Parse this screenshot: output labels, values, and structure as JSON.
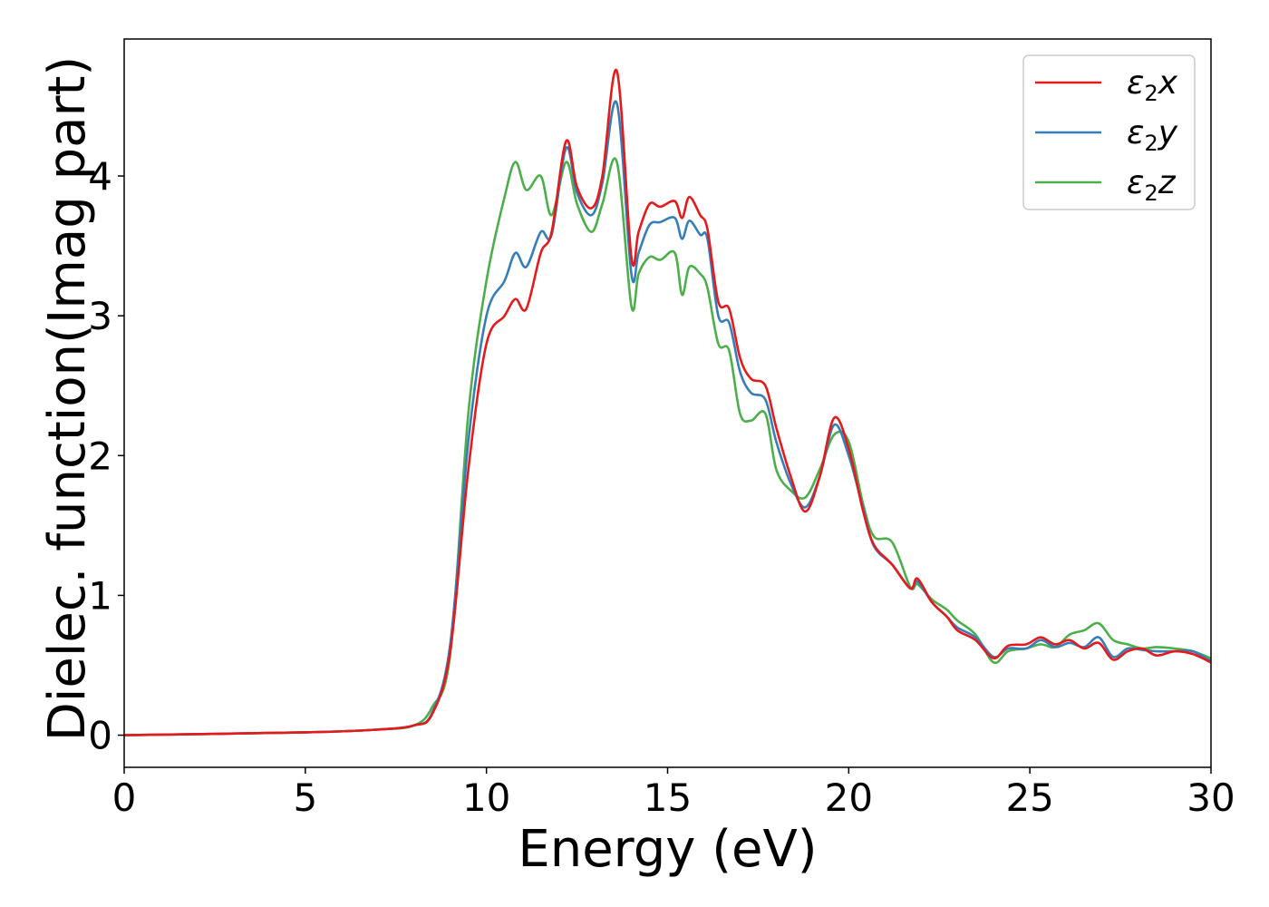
{
  "chart_data": {
    "type": "line",
    "title": "",
    "xlabel": "Energy (eV)",
    "ylabel": "Dielec. function(Imag part)",
    "xlim": [
      0,
      30
    ],
    "ylim": [
      -0.23,
      4.98
    ],
    "xticks": [
      0,
      5,
      10,
      15,
      20,
      25,
      30
    ],
    "yticks": [
      0,
      1,
      2,
      3,
      4
    ],
    "grid": false,
    "legend_position": "top-right",
    "series": [
      {
        "name": "ε2x",
        "legend_main": "ε",
        "legend_sub": "2",
        "legend_var": "x",
        "color": "#e41a1c",
        "x": [
          0,
          5,
          7,
          8,
          8.5,
          9,
          9.5,
          10,
          10.5,
          10.8,
          11.1,
          11.5,
          11.8,
          12.2,
          12.5,
          12.9,
          13.2,
          13.6,
          14.0,
          14.2,
          14.5,
          14.8,
          15.2,
          15.4,
          15.6,
          15.9,
          16.1,
          16.4,
          16.7,
          17.0,
          17.3,
          17.7,
          18.0,
          18.4,
          18.8,
          19.2,
          19.6,
          20.0,
          20.4,
          20.7,
          21.2,
          21.7,
          21.9,
          22.3,
          22.7,
          23.0,
          23.5,
          24.0,
          24.4,
          24.9,
          25.3,
          25.7,
          26.1,
          26.5,
          26.9,
          27.3,
          27.7,
          28.1,
          28.5,
          29.0,
          29.5,
          30
        ],
        "y": [
          0.0,
          0.02,
          0.04,
          0.07,
          0.15,
          0.6,
          1.9,
          2.8,
          3.0,
          3.12,
          3.05,
          3.45,
          3.6,
          4.25,
          3.92,
          3.77,
          4.0,
          4.75,
          3.42,
          3.6,
          3.8,
          3.78,
          3.82,
          3.7,
          3.85,
          3.72,
          3.62,
          3.1,
          3.05,
          2.7,
          2.55,
          2.5,
          2.2,
          1.85,
          1.6,
          1.85,
          2.27,
          2.05,
          1.6,
          1.36,
          1.22,
          1.05,
          1.12,
          0.95,
          0.85,
          0.75,
          0.68,
          0.55,
          0.64,
          0.65,
          0.7,
          0.65,
          0.68,
          0.62,
          0.66,
          0.54,
          0.6,
          0.62,
          0.57,
          0.6,
          0.58,
          0.52
        ]
      },
      {
        "name": "ε2y",
        "legend_main": "ε",
        "legend_sub": "2",
        "legend_var": "y",
        "color": "#377eb8",
        "x": [
          0,
          5,
          7,
          8,
          8.5,
          9,
          9.5,
          10,
          10.5,
          10.8,
          11.1,
          11.5,
          11.8,
          12.2,
          12.5,
          12.9,
          13.2,
          13.6,
          14.0,
          14.2,
          14.5,
          14.8,
          15.2,
          15.4,
          15.6,
          15.9,
          16.1,
          16.4,
          16.7,
          17.0,
          17.3,
          17.7,
          18.0,
          18.4,
          18.8,
          19.2,
          19.6,
          20.0,
          20.4,
          20.7,
          21.2,
          21.7,
          21.9,
          22.3,
          22.7,
          23.0,
          23.5,
          24.0,
          24.4,
          24.9,
          25.3,
          25.7,
          26.1,
          26.5,
          26.9,
          27.3,
          27.7,
          28.1,
          28.5,
          29.0,
          29.5,
          30
        ],
        "y": [
          0.0,
          0.02,
          0.04,
          0.07,
          0.16,
          0.65,
          2.1,
          3.0,
          3.25,
          3.45,
          3.35,
          3.6,
          3.58,
          4.2,
          3.88,
          3.72,
          3.95,
          4.52,
          3.3,
          3.45,
          3.65,
          3.67,
          3.7,
          3.55,
          3.68,
          3.58,
          3.55,
          3.0,
          2.95,
          2.6,
          2.45,
          2.4,
          2.1,
          1.8,
          1.63,
          1.85,
          2.22,
          2.0,
          1.62,
          1.35,
          1.22,
          1.05,
          1.1,
          0.95,
          0.85,
          0.77,
          0.7,
          0.56,
          0.62,
          0.62,
          0.68,
          0.63,
          0.66,
          0.63,
          0.7,
          0.56,
          0.62,
          0.61,
          0.6,
          0.6,
          0.6,
          0.53
        ]
      },
      {
        "name": "ε2z",
        "legend_main": "ε",
        "legend_sub": "2",
        "legend_var": "z",
        "color": "#4daf4a",
        "x": [
          0,
          5,
          7,
          8,
          8.5,
          9,
          9.5,
          10,
          10.5,
          10.8,
          11.1,
          11.5,
          11.8,
          12.2,
          12.5,
          12.9,
          13.2,
          13.6,
          14.0,
          14.2,
          14.5,
          14.8,
          15.2,
          15.4,
          15.6,
          15.9,
          16.1,
          16.4,
          16.7,
          17.0,
          17.3,
          17.7,
          18.0,
          18.4,
          18.8,
          19.2,
          19.6,
          20.0,
          20.4,
          20.7,
          21.2,
          21.7,
          21.9,
          22.3,
          22.7,
          23.0,
          23.5,
          24.0,
          24.4,
          24.9,
          25.3,
          25.7,
          26.1,
          26.5,
          26.9,
          27.3,
          27.7,
          28.1,
          28.5,
          29.0,
          29.5,
          30
        ],
        "y": [
          0.0,
          0.02,
          0.04,
          0.07,
          0.2,
          0.58,
          2.3,
          3.25,
          3.85,
          4.1,
          3.9,
          4.0,
          3.72,
          4.1,
          3.8,
          3.6,
          3.8,
          4.1,
          3.07,
          3.3,
          3.42,
          3.4,
          3.45,
          3.15,
          3.35,
          3.3,
          3.2,
          2.8,
          2.75,
          2.3,
          2.25,
          2.3,
          1.9,
          1.75,
          1.7,
          1.9,
          2.15,
          2.1,
          1.65,
          1.42,
          1.38,
          1.06,
          1.08,
          0.97,
          0.9,
          0.82,
          0.72,
          0.52,
          0.6,
          0.62,
          0.65,
          0.63,
          0.72,
          0.75,
          0.8,
          0.68,
          0.65,
          0.62,
          0.63,
          0.62,
          0.6,
          0.55
        ]
      }
    ]
  }
}
